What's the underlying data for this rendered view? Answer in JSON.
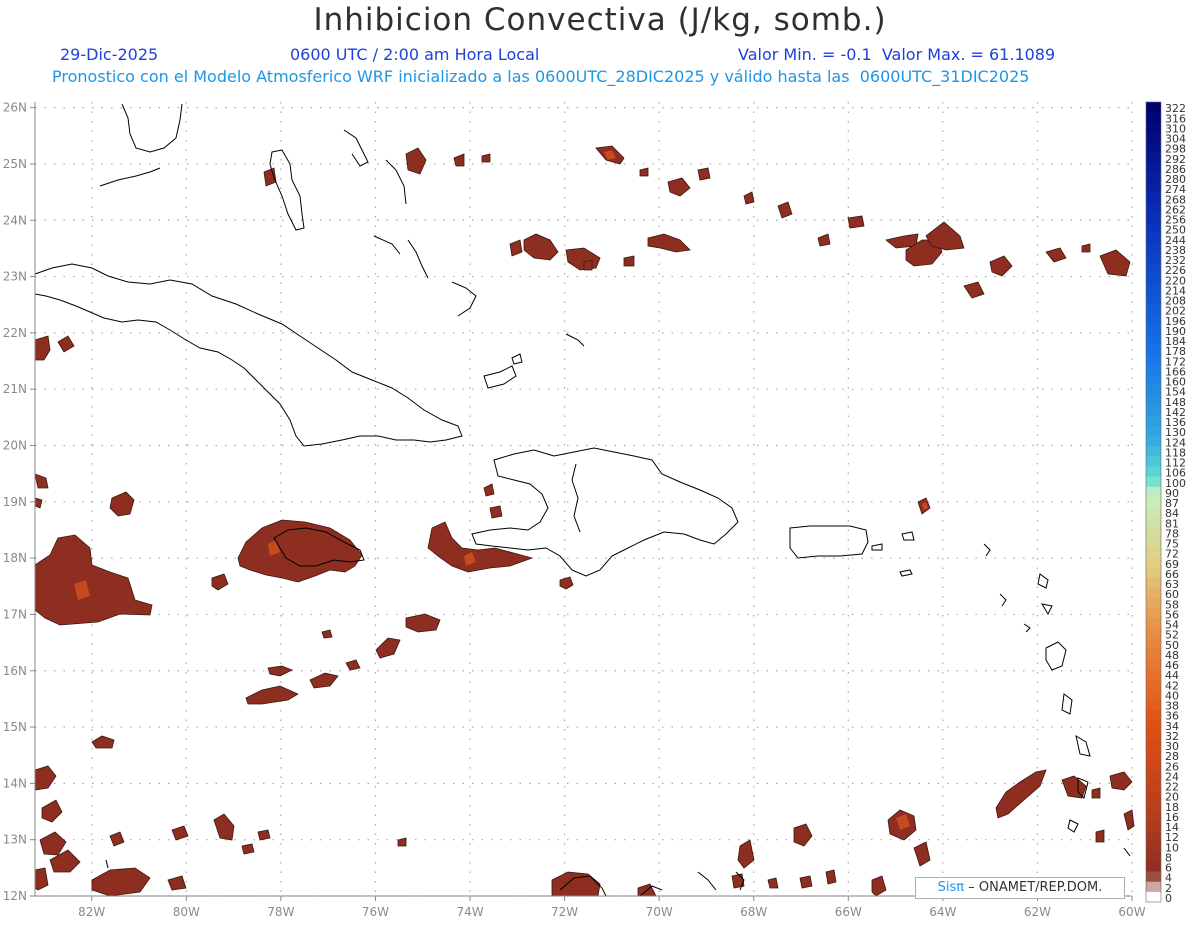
{
  "header": {
    "title": "Inhibicion Convectiva (J/kg, somb.)",
    "date": "29-Dic-2025",
    "time": "0600 UTC / 2:00 am Hora Local",
    "minmax": "Valor Min. = -0.1  Valor Max. = 61.1089",
    "forecast": "Pronostico con el Modelo Atmosferico WRF inicializado a las 0600UTC_28DIC2025 y válido hasta las  0600UTC_31DIC2025"
  },
  "map": {
    "lon_range": [
      -83.2,
      -60.0
    ],
    "lat_range": [
      12.0,
      26.1
    ],
    "lon_ticks": [
      "82W",
      "80W",
      "78W",
      "76W",
      "74W",
      "72W",
      "70W",
      "68W",
      "66W",
      "64W",
      "62W",
      "60W"
    ],
    "lat_ticks": [
      "12N",
      "13N",
      "14N",
      "15N",
      "16N",
      "17N",
      "18N",
      "19N",
      "20N",
      "21N",
      "22N",
      "23N",
      "24N",
      "25N",
      "26N"
    ],
    "shading_color": "#8e2e20",
    "highlight_color": "#c44a20"
  },
  "colorbar": {
    "labels": [
      "322",
      "316",
      "310",
      "304",
      "298",
      "292",
      "286",
      "280",
      "274",
      "268",
      "262",
      "256",
      "250",
      "244",
      "238",
      "232",
      "226",
      "220",
      "214",
      "208",
      "202",
      "196",
      "190",
      "184",
      "178",
      "172",
      "166",
      "160",
      "154",
      "148",
      "142",
      "136",
      "130",
      "124",
      "118",
      "112",
      "106",
      "100",
      "90",
      "87",
      "84",
      "81",
      "78",
      "75",
      "72",
      "69",
      "66",
      "63",
      "60",
      "58",
      "56",
      "54",
      "52",
      "50",
      "48",
      "46",
      "44",
      "42",
      "40",
      "38",
      "36",
      "34",
      "32",
      "30",
      "28",
      "26",
      "24",
      "22",
      "20",
      "18",
      "16",
      "14",
      "12",
      "10",
      "8",
      "6",
      "4",
      "2",
      "0"
    ]
  },
  "credit": {
    "brand": "Sisπ",
    "text": "– ONAMET/REP.DOM."
  }
}
